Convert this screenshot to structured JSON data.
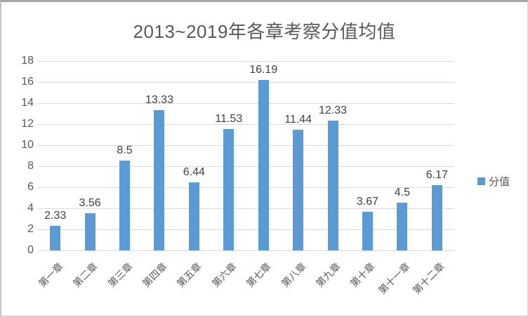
{
  "title": "2013~2019年各章考察分值均值",
  "legend": {
    "label": "分值"
  },
  "chart_data": {
    "type": "bar",
    "title": "2013~2019年各章考察分值均值",
    "categories": [
      "第一章",
      "第二章",
      "第三章",
      "第四章",
      "第五章",
      "第六章",
      "第七章",
      "第八章",
      "第九章",
      "第十章",
      "第十一章",
      "第十二章"
    ],
    "series": [
      {
        "name": "分值",
        "values": [
          2.33,
          3.56,
          8.5,
          13.33,
          6.44,
          11.53,
          16.19,
          11.44,
          12.33,
          3.67,
          4.5,
          6.17
        ]
      }
    ],
    "xlabel": "",
    "ylabel": "",
    "ylim": [
      0,
      18
    ],
    "ytick_step": 2,
    "grid": true,
    "data_labels": true,
    "legend_position": "right",
    "bar_color": "#5B9BD5",
    "gridline_color": "#d9d9d9",
    "axis_text_color": "#595959",
    "title_color": "#595959",
    "data_label_color": "#404040"
  }
}
